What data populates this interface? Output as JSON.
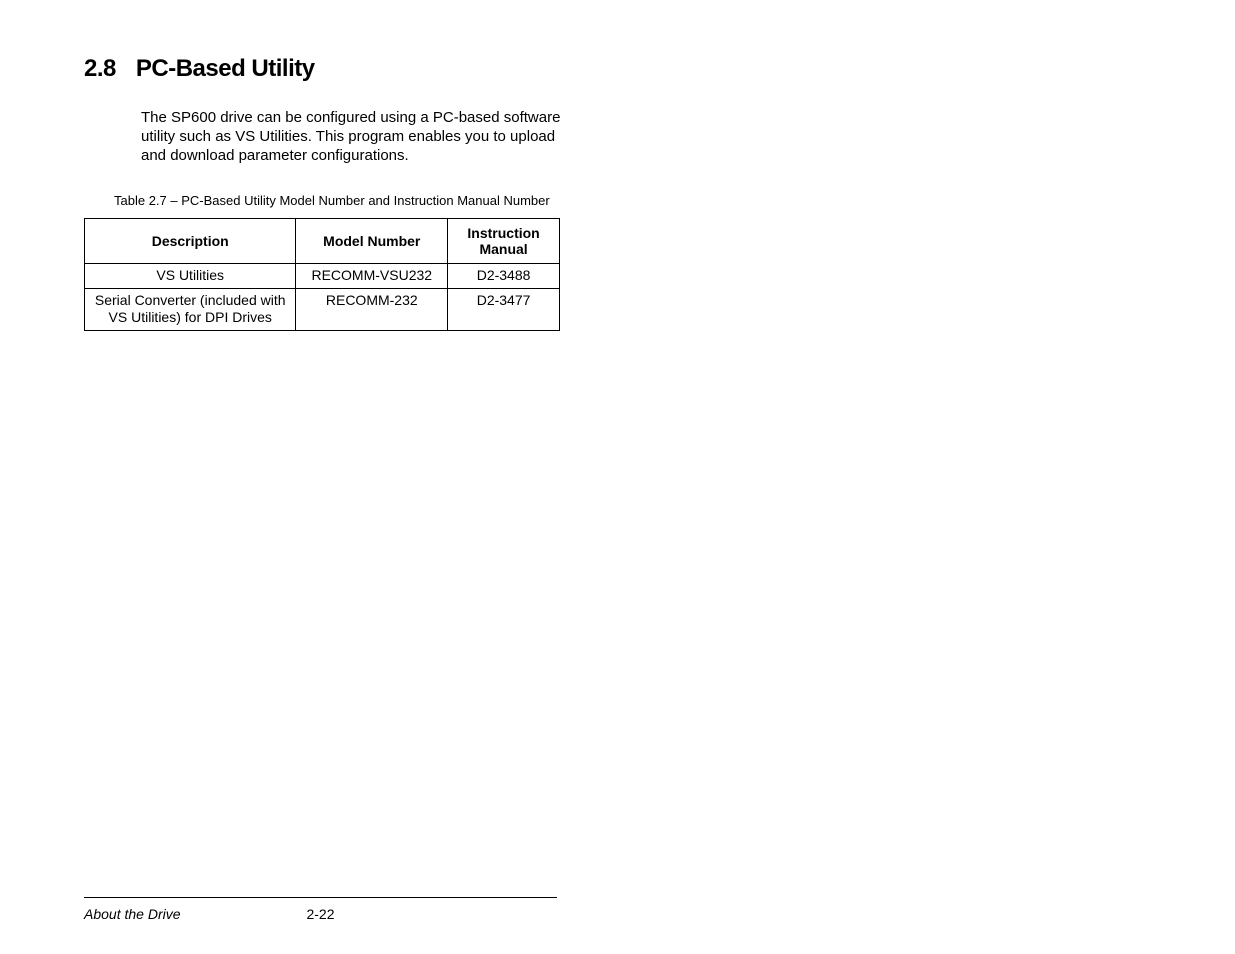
{
  "heading": {
    "number": "2.8",
    "title": "PC-Based Utility"
  },
  "body_paragraph": "The SP600 drive can be configured using a PC-based software utility such as VS Utilities. This program enables you to upload and download parameter configurations.",
  "table": {
    "caption": "Table 2.7 – PC-Based Utility Model Number and Instruction Manual Number",
    "columns": [
      "Description",
      "Model Number",
      "Instruction Manual"
    ],
    "rows": [
      [
        "VS Utilities",
        "RECOMM-VSU232",
        "D2-3488"
      ],
      [
        "Serial Converter (included with VS Utilities) for DPI Drives",
        "RECOMM-232",
        "D2-3477"
      ]
    ]
  },
  "footer": {
    "left": "About the Drive",
    "page": "2-22"
  },
  "style": {
    "bg_color": "#ffffff",
    "text_color": "#000000",
    "border_color": "#000000",
    "font_family": "Arial, Helvetica, sans-serif",
    "heading_fontsize": 24,
    "body_fontsize": 15,
    "caption_fontsize": 13,
    "table_fontsize": 14,
    "footer_fontsize": 14
  }
}
